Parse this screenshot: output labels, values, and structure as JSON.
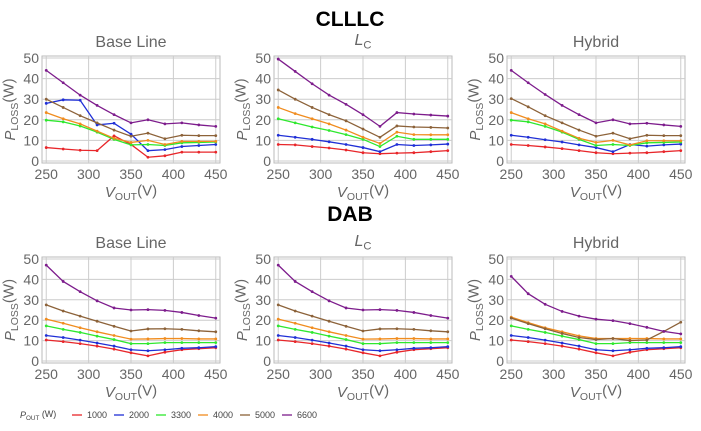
{
  "groups": [
    "CLLLC",
    "DAB"
  ],
  "legend": {
    "title_main": "P",
    "title_sub": "OUT",
    "title_unit": " (W)"
  },
  "axis_labels": {
    "x_main": "V",
    "x_sub": "OUT",
    "x_unit": "(V)",
    "y_main": "P",
    "y_sub": "LOSS",
    "y_unit": "(W)"
  },
  "chart_data": [
    {
      "type": "line",
      "group": "CLLLC",
      "title": "Base Line",
      "title_main": "",
      "title_sub": "",
      "xlim": [
        245,
        455
      ],
      "ylim": [
        -1,
        51
      ],
      "xticks": [
        250,
        300,
        350,
        400,
        450
      ],
      "yticks": [
        0,
        10,
        20,
        30,
        40,
        50
      ],
      "grid": true,
      "x": [
        250,
        270,
        290,
        310,
        330,
        350,
        370,
        390,
        410,
        430,
        450
      ],
      "series": [
        {
          "name": "1000",
          "color": "#e8262a",
          "values": [
            6.5,
            5.8,
            5.2,
            5,
            12.2,
            8,
            1.8,
            2.5,
            4.3,
            4.3,
            4.3
          ]
        },
        {
          "name": "2000",
          "color": "#1f2fd6",
          "values": [
            28,
            29.7,
            29.5,
            17.5,
            18.3,
            13,
            5,
            5.5,
            7,
            7.5,
            8
          ]
        },
        {
          "name": "3300",
          "color": "#2ee82e",
          "values": [
            19.8,
            19,
            17,
            14,
            10.5,
            7.8,
            8,
            7.5,
            8.8,
            9,
            9.2
          ]
        },
        {
          "name": "4000",
          "color": "#f08c1e",
          "values": [
            23.5,
            20.5,
            18,
            14.5,
            11,
            9,
            10,
            8,
            9.5,
            9.5,
            9.5
          ]
        },
        {
          "name": "5000",
          "color": "#8c6239",
          "values": [
            30,
            26,
            22,
            18.5,
            15,
            12,
            13.5,
            10.8,
            12.5,
            12.3,
            12.3
          ]
        },
        {
          "name": "6600",
          "color": "#7d1c8c",
          "values": [
            44,
            38,
            32,
            27,
            22.5,
            18.5,
            20,
            18,
            18.5,
            17.5,
            16.8
          ]
        }
      ]
    },
    {
      "type": "line",
      "group": "CLLLC",
      "title": "",
      "title_main": "L",
      "title_sub": "C",
      "xlim": [
        245,
        455
      ],
      "ylim": [
        -1,
        51
      ],
      "xticks": [
        250,
        300,
        350,
        400,
        450
      ],
      "yticks": [
        0,
        10,
        20,
        30,
        40,
        50
      ],
      "grid": true,
      "x": [
        250,
        270,
        290,
        310,
        330,
        350,
        370,
        390,
        410,
        430,
        450
      ],
      "series": [
        {
          "name": "1000",
          "color": "#e8262a",
          "values": [
            8,
            7.8,
            7,
            6.3,
            5.3,
            4,
            3.5,
            3.8,
            4,
            4.5,
            5
          ]
        },
        {
          "name": "2000",
          "color": "#1f2fd6",
          "values": [
            12.5,
            11.5,
            10.5,
            9.3,
            8,
            6.5,
            4.5,
            8,
            7.5,
            7.8,
            8.2
          ]
        },
        {
          "name": "3300",
          "color": "#2ee82e",
          "values": [
            20.5,
            18.5,
            16.5,
            14.8,
            12.8,
            10.5,
            7,
            12,
            10.5,
            10.5,
            10.5
          ]
        },
        {
          "name": "4000",
          "color": "#f08c1e",
          "values": [
            26,
            23,
            20.5,
            18,
            15,
            11.5,
            8.5,
            14,
            12.8,
            12.7,
            12.7
          ]
        },
        {
          "name": "5000",
          "color": "#8c6239",
          "values": [
            34.5,
            30,
            26,
            22.5,
            19.5,
            15.5,
            11.5,
            17,
            16.5,
            16.3,
            16
          ]
        },
        {
          "name": "6600",
          "color": "#7d1c8c",
          "values": [
            49.5,
            43.5,
            37.5,
            32,
            27.5,
            22.5,
            16.8,
            23.5,
            22.8,
            22.3,
            21.8
          ]
        }
      ]
    },
    {
      "type": "line",
      "group": "CLLLC",
      "title": "Hybrid",
      "title_main": "",
      "title_sub": "",
      "xlim": [
        245,
        455
      ],
      "ylim": [
        -1,
        51
      ],
      "xticks": [
        250,
        300,
        350,
        400,
        450
      ],
      "yticks": [
        0,
        10,
        20,
        30,
        40,
        50
      ],
      "grid": true,
      "x": [
        250,
        270,
        290,
        310,
        330,
        350,
        370,
        390,
        410,
        430,
        450
      ],
      "series": [
        {
          "name": "1000",
          "color": "#e8262a",
          "values": [
            8,
            7.5,
            6.8,
            6,
            5,
            4,
            3.5,
            3.8,
            4,
            4.5,
            5
          ]
        },
        {
          "name": "2000",
          "color": "#1f2fd6",
          "values": [
            12.5,
            11.5,
            10.3,
            9.2,
            7.8,
            6.5,
            4.5,
            8,
            7.2,
            7.8,
            8.2
          ]
        },
        {
          "name": "3300",
          "color": "#2ee82e",
          "values": [
            19.8,
            19,
            16.8,
            14,
            10.5,
            7.5,
            8,
            7.5,
            8.8,
            9,
            9.2
          ]
        },
        {
          "name": "4000",
          "color": "#f08c1e",
          "values": [
            23.5,
            20.5,
            18,
            14.5,
            11,
            9,
            10,
            7.8,
            9.8,
            9.8,
            9.8
          ]
        },
        {
          "name": "5000",
          "color": "#8c6239",
          "values": [
            30.3,
            26.3,
            22,
            18.5,
            15,
            12,
            13.5,
            10.8,
            12.5,
            12.3,
            12.3
          ]
        },
        {
          "name": "6600",
          "color": "#7d1c8c",
          "values": [
            44,
            38,
            32.3,
            27,
            22.5,
            18.5,
            20,
            18,
            18.3,
            17.5,
            16.8
          ]
        }
      ]
    },
    {
      "type": "line",
      "group": "DAB",
      "title": "Base Line",
      "title_main": "",
      "title_sub": "",
      "xlim": [
        245,
        455
      ],
      "ylim": [
        -1,
        51
      ],
      "xticks": [
        250,
        300,
        350,
        400,
        450
      ],
      "yticks": [
        0,
        10,
        20,
        30,
        40,
        50
      ],
      "grid": true,
      "x": [
        250,
        270,
        290,
        310,
        330,
        350,
        370,
        390,
        410,
        430,
        450
      ],
      "series": [
        {
          "name": "1000",
          "color": "#e8262a",
          "values": [
            10.3,
            9.5,
            8.5,
            7.3,
            5.8,
            4,
            2.5,
            4.3,
            5.5,
            6,
            6.5
          ]
        },
        {
          "name": "2000",
          "color": "#1f2fd6",
          "values": [
            12.5,
            11.5,
            10.2,
            8.8,
            7.3,
            5.5,
            5,
            5.5,
            6.2,
            6.5,
            7
          ]
        },
        {
          "name": "3300",
          "color": "#2ee82e",
          "values": [
            17.2,
            15.5,
            14,
            12.2,
            10.5,
            8.5,
            8.5,
            9,
            9,
            9,
            9
          ]
        },
        {
          "name": "4000",
          "color": "#f08c1e",
          "values": [
            20.5,
            18.5,
            16.3,
            14.3,
            12.5,
            10.7,
            10.8,
            11,
            11,
            10.8,
            10.8
          ]
        },
        {
          "name": "5000",
          "color": "#8c6239",
          "values": [
            27.5,
            24.5,
            22,
            19.5,
            17,
            14.7,
            15.7,
            15.8,
            15.5,
            14.8,
            14.3
          ]
        },
        {
          "name": "6600",
          "color": "#7d1c8c",
          "values": [
            47,
            39,
            34,
            29.5,
            26,
            25,
            25.2,
            24.8,
            23.8,
            22.3,
            21
          ]
        }
      ]
    },
    {
      "type": "line",
      "group": "DAB",
      "title": "",
      "title_main": "L",
      "title_sub": "C",
      "xlim": [
        245,
        455
      ],
      "ylim": [
        -1,
        51
      ],
      "xticks": [
        250,
        300,
        350,
        400,
        450
      ],
      "yticks": [
        0,
        10,
        20,
        30,
        40,
        50
      ],
      "grid": true,
      "x": [
        250,
        270,
        290,
        310,
        330,
        350,
        370,
        390,
        410,
        430,
        450
      ],
      "series": [
        {
          "name": "1000",
          "color": "#e8262a",
          "values": [
            10.3,
            9.5,
            8.5,
            7.3,
            5.8,
            4,
            2.5,
            4.3,
            5.5,
            6,
            6.5
          ]
        },
        {
          "name": "2000",
          "color": "#1f2fd6",
          "values": [
            12.5,
            11.5,
            10.2,
            8.8,
            7.3,
            5.5,
            5,
            5.5,
            6.2,
            6.5,
            7
          ]
        },
        {
          "name": "3300",
          "color": "#2ee82e",
          "values": [
            17.2,
            15.5,
            14,
            12.2,
            10.5,
            8.5,
            8.5,
            9,
            9,
            9,
            9
          ]
        },
        {
          "name": "4000",
          "color": "#f08c1e",
          "values": [
            20.5,
            18.5,
            16.3,
            14.3,
            12.5,
            10.7,
            10.8,
            11,
            11,
            10.8,
            10.8
          ]
        },
        {
          "name": "5000",
          "color": "#8c6239",
          "values": [
            27.5,
            24.5,
            22,
            19.5,
            17,
            14.7,
            15.7,
            15.8,
            15.5,
            14.8,
            14.3
          ]
        },
        {
          "name": "6600",
          "color": "#7d1c8c",
          "values": [
            47,
            39,
            34,
            29.5,
            26,
            25,
            25.2,
            24.8,
            23.8,
            22.3,
            21
          ]
        }
      ]
    },
    {
      "type": "line",
      "group": "DAB",
      "title": "Hybrid",
      "title_main": "",
      "title_sub": "",
      "xlim": [
        245,
        455
      ],
      "ylim": [
        -1,
        51
      ],
      "xticks": [
        250,
        300,
        350,
        400,
        450
      ],
      "yticks": [
        0,
        10,
        20,
        30,
        40,
        50
      ],
      "grid": true,
      "x": [
        250,
        270,
        290,
        310,
        330,
        350,
        370,
        390,
        410,
        430,
        450
      ],
      "series": [
        {
          "name": "1000",
          "color": "#e8262a",
          "values": [
            10.3,
            9.5,
            8.5,
            7.3,
            5.8,
            4,
            2.5,
            4.3,
            5.5,
            6,
            6.5
          ]
        },
        {
          "name": "2000",
          "color": "#1f2fd6",
          "values": [
            12.5,
            11.5,
            10.2,
            8.8,
            7.3,
            5.5,
            5,
            5.5,
            6.2,
            6.5,
            7
          ]
        },
        {
          "name": "3300",
          "color": "#2ee82e",
          "values": [
            17.2,
            15.5,
            14,
            12.2,
            10.5,
            8.5,
            8.5,
            9,
            9,
            9,
            9
          ]
        },
        {
          "name": "4000",
          "color": "#f08c1e",
          "values": [
            21.5,
            18.8,
            16.3,
            14.3,
            12.3,
            11,
            11,
            11,
            11,
            10.8,
            10.8
          ]
        },
        {
          "name": "5000",
          "color": "#8c6239",
          "values": [
            21,
            18.3,
            15.8,
            13.5,
            11.5,
            10.5,
            11,
            10,
            10.3,
            14.5,
            19
          ]
        },
        {
          "name": "6600",
          "color": "#7d1c8c",
          "values": [
            41.5,
            33,
            27.8,
            24.3,
            22,
            20.5,
            19.8,
            18.3,
            16.5,
            14.5,
            13.3
          ]
        }
      ]
    }
  ]
}
